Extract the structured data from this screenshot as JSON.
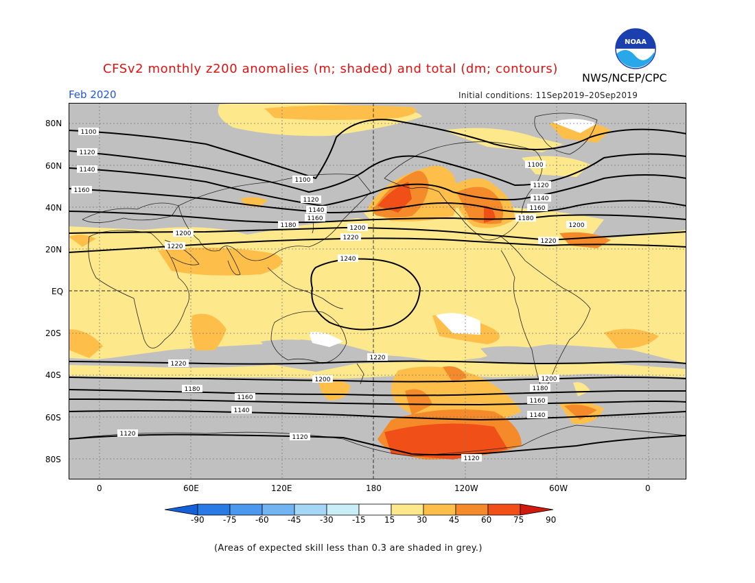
{
  "title": "CFSv2 monthly z200 anomalies (m; shaded) and total (dm; contours)",
  "agency": "NWS/NCEP/CPC",
  "valid_month": "Feb 2020",
  "initial_conditions": "Initial conditions: 11Sep2019–20Sep2019",
  "footnote": "(Areas of expected skill less than 0.3 are shaded in grey.)",
  "logo": {
    "text": "NOAA",
    "icon": "noaa-logo"
  },
  "map": {
    "lat_labels": [
      "80N",
      "60N",
      "40N",
      "20N",
      "EQ",
      "20S",
      "40S",
      "60S",
      "80S"
    ],
    "lon_labels": [
      "0",
      "60E",
      "120E",
      "180",
      "120W",
      "60W",
      "0"
    ]
  },
  "colorbar": {
    "ticks": [
      "-90",
      "-75",
      "-60",
      "-45",
      "-30",
      "-15",
      "15",
      "30",
      "45",
      "60",
      "75",
      "90"
    ],
    "colors": [
      "#1460d8",
      "#2a7ae6",
      "#4c98ee",
      "#72b4f2",
      "#a4d6f6",
      "#c8eef8",
      "#ffffff",
      "#fde88c",
      "#fdbf4a",
      "#f58a2a",
      "#f05018",
      "#d01a10"
    ]
  },
  "contour_labels": [
    "1100",
    "1120",
    "1140",
    "1160",
    "1100",
    "1120",
    "1140",
    "1160",
    "1180",
    "1200",
    "1220",
    "1200",
    "1220",
    "1240",
    "1100",
    "1120",
    "1140",
    "1160",
    "1180",
    "1200",
    "1220",
    "1220",
    "1200",
    "1180",
    "1160",
    "1140",
    "1120",
    "1220",
    "1200",
    "1180",
    "1160",
    "1140",
    "1120",
    "1120"
  ]
}
